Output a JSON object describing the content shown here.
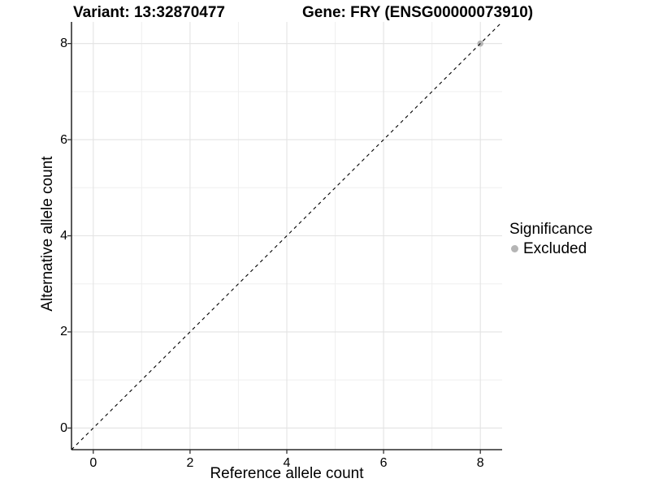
{
  "chart_data": {
    "type": "scatter",
    "titles": [
      "Variant: 13:32870477",
      "Gene: FRY (ENSG00000073910)"
    ],
    "xlabel": "Reference allele count",
    "ylabel": "Alternative allele count",
    "xlim": [
      -0.45,
      8.45
    ],
    "ylim": [
      -0.45,
      8.45
    ],
    "x_ticks": [
      0,
      2,
      4,
      6,
      8
    ],
    "y_ticks": [
      0,
      2,
      4,
      6,
      8
    ],
    "x_minor_ticks": [
      1,
      3,
      5,
      7
    ],
    "y_minor_ticks": [
      1,
      3,
      5,
      7
    ],
    "grid": "major and minor gridlines on white background",
    "reference_line": {
      "type": "identity y=x",
      "style": "dashed",
      "color": "#000000"
    },
    "series": [
      {
        "name": "Excluded",
        "color": "#b5b5b5",
        "points": [
          [
            8,
            8
          ]
        ]
      }
    ],
    "legend": {
      "title": "Significance",
      "position": "right",
      "entries": [
        {
          "label": "Excluded",
          "color": "#b5b5b5",
          "marker": "circle"
        }
      ]
    },
    "colors": {
      "background": "#ffffff",
      "grid_major": "#e3e3e3",
      "grid_minor": "#efefef",
      "axis_line": "#000000",
      "tick": "#333333",
      "text": "#000000"
    }
  }
}
